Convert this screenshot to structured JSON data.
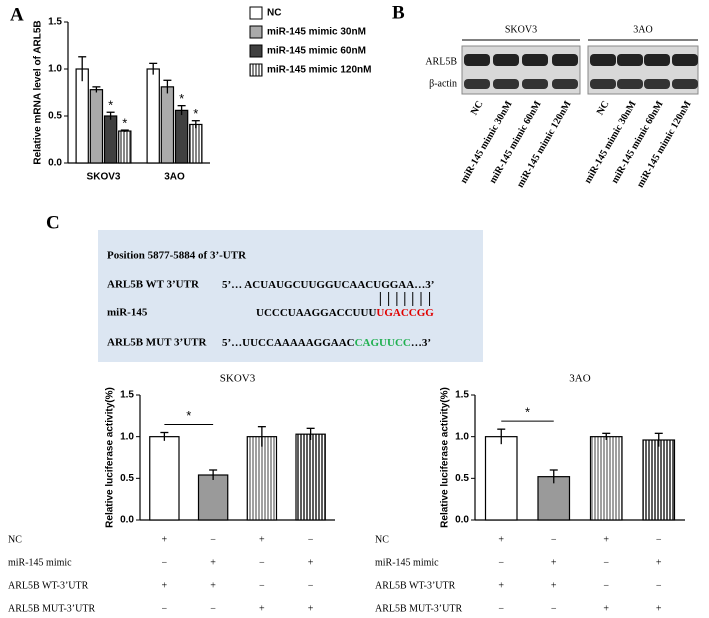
{
  "panel_labels": [
    "A",
    "B",
    "C"
  ],
  "chart_data": [
    {
      "type": "bar",
      "y_label": "Relative mRNA level of ARL5B",
      "categories": [
        "SKOV3",
        "3AO"
      ],
      "series": [
        {
          "name": "NC",
          "color": "#ffffff",
          "pattern": "solid",
          "values": [
            1.0,
            1.0
          ],
          "errors": [
            0.13,
            0.06
          ]
        },
        {
          "name": "miR-145 mimic 30nM",
          "color": "#aaaaaa",
          "pattern": "solid",
          "values": [
            0.78,
            0.81
          ],
          "errors": [
            0.03,
            0.07
          ]
        },
        {
          "name": "miR-145 mimic 60nM",
          "color": "#404040",
          "pattern": "solid",
          "values": [
            0.5,
            0.56
          ],
          "errors": [
            0.04,
            0.05
          ]
        },
        {
          "name": "miR-145 mimic 120nM",
          "color": "#666666",
          "pattern": "vertical-stripes",
          "values": [
            0.34,
            0.41
          ],
          "errors": [
            0.01,
            0.04
          ]
        }
      ],
      "ylim": [
        0,
        1.5
      ],
      "yticks": [
        {
          "value": 0,
          "label": "0.0"
        },
        0.5,
        {
          "value": 1,
          "label": "1.0"
        },
        1.5
      ],
      "legend": "right",
      "annotations": [
        {
          "series": 2,
          "category": 0,
          "text": "*"
        },
        {
          "series": 3,
          "category": 0,
          "text": "*"
        },
        {
          "series": 2,
          "category": 1,
          "text": "*"
        },
        {
          "series": 3,
          "category": 1,
          "text": "*"
        }
      ]
    },
    {
      "type": "bar",
      "title": "SKOV3",
      "y_label": "Relative luciferase activity(%)",
      "categories": [
        null,
        null,
        null,
        null
      ],
      "values": [
        1.0,
        0.54,
        1.0,
        1.03
      ],
      "errors": [
        0.05,
        0.06,
        0.12,
        0.07
      ],
      "colors": [
        "#ffffff",
        "#9a9a9a",
        "#888888",
        "#333333"
      ],
      "patterns": [
        "solid",
        "solid",
        "vertical-stripes",
        "vertical-stripes"
      ],
      "ylim": [
        0,
        1.5
      ],
      "yticks": [
        {
          "value": 0,
          "label": "0.0"
        },
        0.5,
        {
          "value": 1,
          "label": "1.0"
        },
        1.5
      ],
      "significance": [
        {
          "from": 0,
          "to": 1,
          "label": "*"
        }
      ],
      "treatment_table": {
        "rows": [
          {
            "label": "NC",
            "signs": [
              "+",
              "−",
              "+",
              "−"
            ]
          },
          {
            "label": "miR-145 mimic",
            "signs": [
              "−",
              "+",
              "−",
              "+"
            ]
          },
          {
            "label": "ARL5B WT-3’UTR",
            "signs": [
              "+",
              "+",
              "−",
              "−"
            ]
          },
          {
            "label": "ARL5B MUT-3’UTR",
            "signs": [
              "−",
              "−",
              "+",
              "+"
            ]
          }
        ]
      }
    },
    {
      "type": "bar",
      "title": "3AO",
      "y_label": "Relative luciferase activity(%)",
      "categories": [
        null,
        null,
        null,
        null
      ],
      "values": [
        1.0,
        0.52,
        1.0,
        0.96
      ],
      "errors": [
        0.09,
        0.08,
        0.04,
        0.08
      ],
      "colors": [
        "#ffffff",
        "#9a9a9a",
        "#888888",
        "#333333"
      ],
      "patterns": [
        "solid",
        "solid",
        "vertical-stripes",
        "vertical-stripes"
      ],
      "ylim": [
        0,
        1.5
      ],
      "yticks": [
        {
          "value": 0,
          "label": "0.0"
        },
        0.5,
        {
          "value": 1,
          "label": "1.0"
        },
        1.5
      ],
      "significance": [
        {
          "from": 0,
          "to": 1,
          "label": "*"
        }
      ],
      "treatment_table": {
        "rows": [
          {
            "label": "NC",
            "signs": [
              "+",
              "−",
              "+",
              "−"
            ]
          },
          {
            "label": "miR-145 mimic",
            "signs": [
              "−",
              "+",
              "−",
              "+"
            ]
          },
          {
            "label": "ARL5B WT-3’UTR",
            "signs": [
              "+",
              "+",
              "−",
              "−"
            ]
          },
          {
            "label": "ARL5B MUT-3’UTR",
            "signs": [
              "−",
              "−",
              "+",
              "+"
            ]
          }
        ]
      }
    }
  ],
  "blot": {
    "rows": [
      "ARL5B",
      "β-actin"
    ],
    "groups": [
      {
        "name": "SKOV3",
        "lanes": [
          "NC",
          "miR-145 mimic 30nM",
          "miR-145 mimic 60nM",
          "miR-145 mimic 120nM"
        ]
      },
      {
        "name": "3AO",
        "lanes": [
          "NC",
          "miR-145 mimic 30nM",
          "miR-145 mimic 60nM",
          "miR-145 mimic 120nM"
        ]
      }
    ]
  },
  "sequence_box": {
    "title": "Position 5877-5884 of 3’-UTR",
    "rows": [
      {
        "label": "ARL5B WT 3’UTR",
        "parts": [
          {
            "text": "5’… ACUAUGCUUGGUCAACUGGAA…3’",
            "color": "#000000"
          }
        ]
      },
      {
        "label": "miR-145",
        "parts": [
          {
            "text": "UCCCUAAGGACCUUU",
            "color": "#000000"
          },
          {
            "text": "UGACCGG",
            "color": "#e00000"
          }
        ]
      },
      {
        "label": "ARL5B MUT 3’UTR",
        "parts": [
          {
            "text": "5’…UUCCAAAAAGGAAC",
            "color": "#000000"
          },
          {
            "text": "CAGUUCC",
            "color": "#20b050"
          },
          {
            "text": "…3’",
            "color": "#000000"
          }
        ]
      }
    ]
  }
}
